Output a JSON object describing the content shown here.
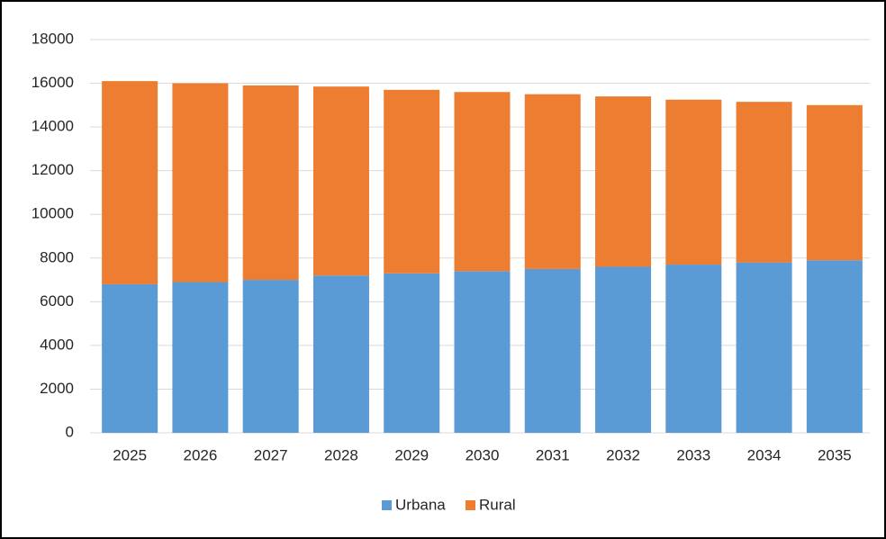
{
  "chart_data": {
    "type": "stacked_bar",
    "categories": [
      "2025",
      "2026",
      "2027",
      "2028",
      "2029",
      "2030",
      "2031",
      "2032",
      "2033",
      "2034",
      "2035"
    ],
    "series": [
      {
        "name": "Urbana",
        "color": "#5b9bd5",
        "values": [
          6800,
          6900,
          7000,
          7200,
          7300,
          7400,
          7500,
          7600,
          7700,
          7800,
          7900
        ]
      },
      {
        "name": "Rural",
        "color": "#ed7d31",
        "values": [
          9300,
          9100,
          8900,
          8650,
          8400,
          8200,
          8000,
          7800,
          7550,
          7350,
          7100
        ]
      }
    ],
    "ylim": [
      0,
      18000
    ],
    "yticks": [
      0,
      2000,
      4000,
      6000,
      8000,
      10000,
      12000,
      14000,
      16000,
      18000
    ],
    "grid": true,
    "legend": "bottom"
  }
}
